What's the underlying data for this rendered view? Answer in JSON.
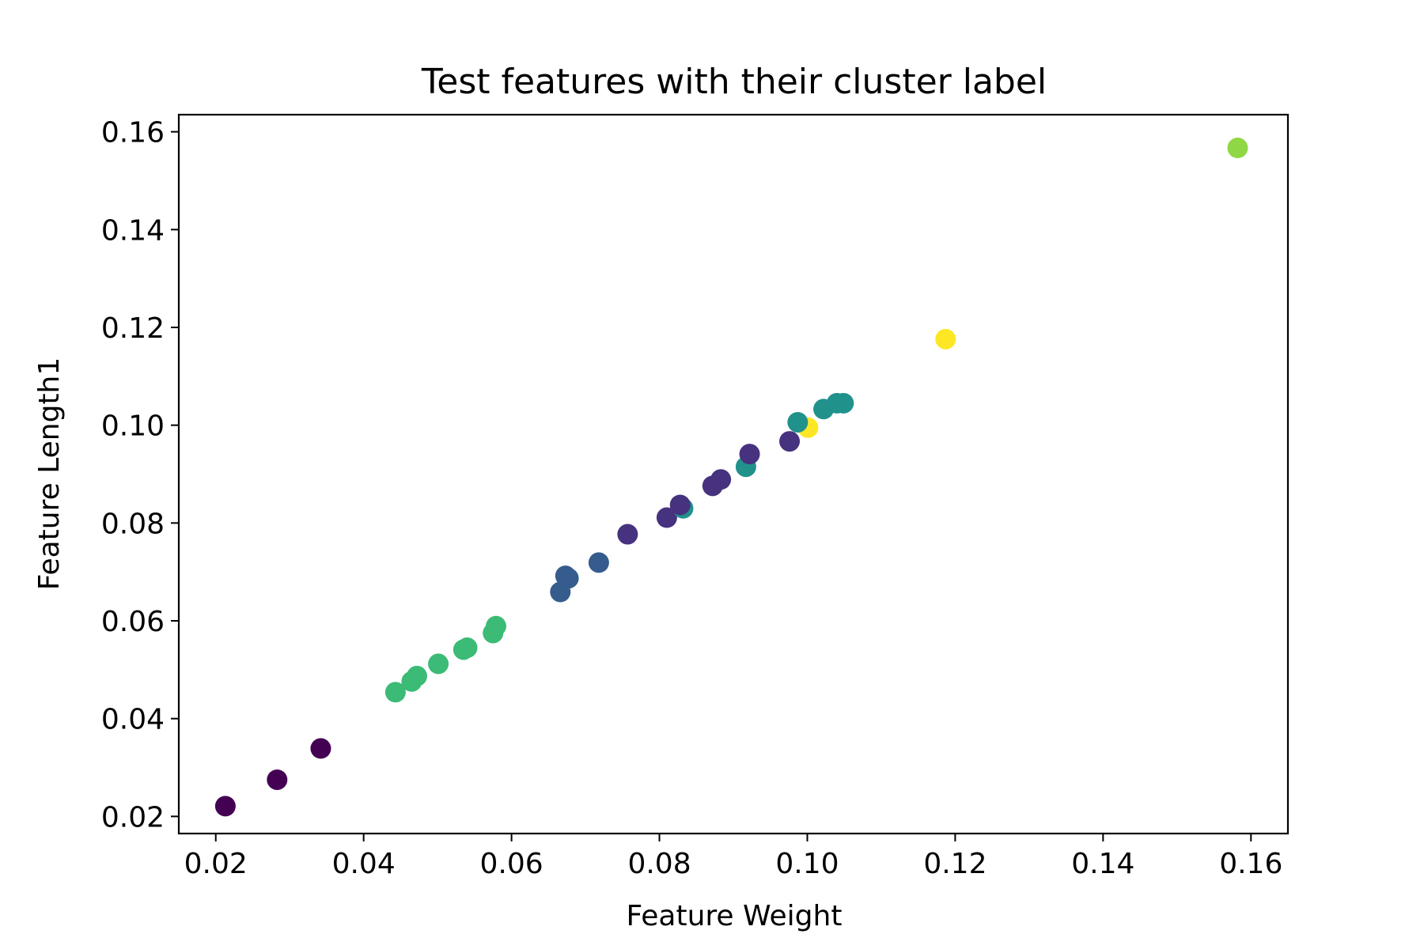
{
  "chart_data": {
    "type": "scatter",
    "title": "Test features with their cluster label",
    "xlabel": "Feature Weight",
    "ylabel": "Feature Length1",
    "xlim": [
      0.015,
      0.165
    ],
    "ylim": [
      0.0165,
      0.1635
    ],
    "xticks": [
      0.02,
      0.04,
      0.06,
      0.08,
      0.1,
      0.12,
      0.14,
      0.16
    ],
    "xtick_labels": [
      "0.02",
      "0.04",
      "0.06",
      "0.08",
      "0.10",
      "0.12",
      "0.14",
      "0.16"
    ],
    "yticks": [
      0.02,
      0.04,
      0.06,
      0.08,
      0.1,
      0.12,
      0.14,
      0.16
    ],
    "ytick_labels": [
      "0.02",
      "0.04",
      "0.06",
      "0.08",
      "0.10",
      "0.12",
      "0.14",
      "0.16"
    ],
    "grid": false,
    "legend": false,
    "cluster_colors": {
      "0": "#440154",
      "1": "#46327e",
      "2": "#365c8d",
      "3": "#21918c",
      "4": "#3bbb75",
      "5": "#8fd744",
      "6": "#fde725"
    },
    "points": [
      {
        "x": 0.0213,
        "y": 0.0221,
        "cluster": 0
      },
      {
        "x": 0.0283,
        "y": 0.0275,
        "cluster": 0
      },
      {
        "x": 0.0342,
        "y": 0.0339,
        "cluster": 0
      },
      {
        "x": 0.0443,
        "y": 0.0454,
        "cluster": 4
      },
      {
        "x": 0.0465,
        "y": 0.0476,
        "cluster": 4
      },
      {
        "x": 0.0472,
        "y": 0.0487,
        "cluster": 4
      },
      {
        "x": 0.0501,
        "y": 0.0512,
        "cluster": 4
      },
      {
        "x": 0.0535,
        "y": 0.0541,
        "cluster": 4
      },
      {
        "x": 0.054,
        "y": 0.0545,
        "cluster": 4
      },
      {
        "x": 0.0575,
        "y": 0.0575,
        "cluster": 4
      },
      {
        "x": 0.0579,
        "y": 0.0589,
        "cluster": 4
      },
      {
        "x": 0.0666,
        "y": 0.0659,
        "cluster": 2
      },
      {
        "x": 0.0673,
        "y": 0.0692,
        "cluster": 2
      },
      {
        "x": 0.0677,
        "y": 0.0687,
        "cluster": 2
      },
      {
        "x": 0.0718,
        "y": 0.0719,
        "cluster": 2
      },
      {
        "x": 0.0757,
        "y": 0.0777,
        "cluster": 1
      },
      {
        "x": 0.081,
        "y": 0.0811,
        "cluster": 1
      },
      {
        "x": 0.0832,
        "y": 0.083,
        "cluster": 3
      },
      {
        "x": 0.0828,
        "y": 0.0837,
        "cluster": 1
      },
      {
        "x": 0.0872,
        "y": 0.0876,
        "cluster": 1
      },
      {
        "x": 0.0883,
        "y": 0.0889,
        "cluster": 1
      },
      {
        "x": 0.0917,
        "y": 0.0915,
        "cluster": 3
      },
      {
        "x": 0.0922,
        "y": 0.0941,
        "cluster": 1
      },
      {
        "x": 0.0976,
        "y": 0.0967,
        "cluster": 1
      },
      {
        "x": 0.1001,
        "y": 0.0995,
        "cluster": 6
      },
      {
        "x": 0.0987,
        "y": 0.1006,
        "cluster": 3
      },
      {
        "x": 0.1022,
        "y": 0.1033,
        "cluster": 3
      },
      {
        "x": 0.104,
        "y": 0.1045,
        "cluster": 3
      },
      {
        "x": 0.1049,
        "y": 0.1045,
        "cluster": 3
      },
      {
        "x": 0.1187,
        "y": 0.1176,
        "cluster": 6
      },
      {
        "x": 0.1582,
        "y": 0.1567,
        "cluster": 5
      }
    ]
  }
}
